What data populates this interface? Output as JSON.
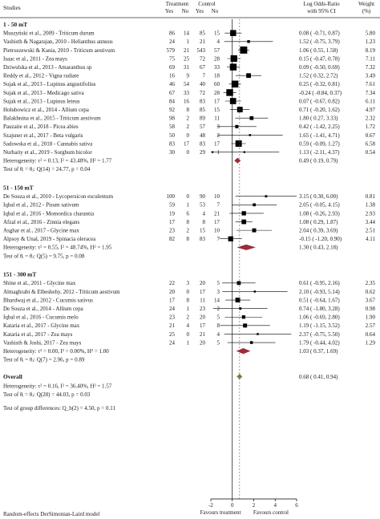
{
  "chart_data": {
    "type": "forest",
    "header": {
      "studies": "Studies",
      "treatment": "Treatment",
      "control": "Control",
      "yes": "Yes",
      "no": "No",
      "estimate_line1": "Log Odds-Ratio",
      "estimate_line2": "with 95% CI",
      "weight_line1": "Weight",
      "weight_line2": "(%)"
    },
    "xlim": [
      -2,
      6
    ],
    "xticks": [
      "-2",
      "0",
      "2",
      "4",
      "6"
    ],
    "x_left_label": "Favours treatment",
    "x_right_label": "Favours control",
    "footer": "Random-effects DerSimonian-Laird model",
    "group_difference_test": "Test of group differences: Q_b(2) = 4.50, p = 0.11",
    "groups": [
      {
        "title": "1 - 50 mT",
        "studies": [
          {
            "name": "Muszyński et al., 2009 - Triticum durum",
            "t_yes": "86",
            "t_no": "14",
            "c_yes": "85",
            "c_no": "15",
            "estimate": 0.08,
            "lower": -0.71,
            "upper": 0.87,
            "est_text": "0.08 (  -0.71,  0.87)",
            "weight": "5.80"
          },
          {
            "name": "Vashisth & Nagarajan, 2010 - Helianthus annuus",
            "t_yes": "24",
            "t_no": "1",
            "c_yes": "21",
            "c_no": "4",
            "estimate": 1.52,
            "lower": -0.75,
            "upper": 3.79,
            "est_text": "1.52 (  -0.75,  3.79)",
            "weight": "1.23"
          },
          {
            "name": "Pietruszewski & Kania, 2010 - Triticum aestivum",
            "t_yes": "579",
            "t_no": "21",
            "c_yes": "543",
            "c_no": "57",
            "estimate": 1.06,
            "lower": 0.55,
            "upper": 1.58,
            "est_text": "1.06 (   0.55,  1.58)",
            "weight": "8.19"
          },
          {
            "name": "Isaac et al., 2011 - Zea mays",
            "t_yes": "75",
            "t_no": "25",
            "c_yes": "72",
            "c_no": "28",
            "estimate": 0.15,
            "lower": -0.47,
            "upper": 0.78,
            "est_text": "0.15 (  -0.47,  0.78)",
            "weight": "7.11"
          },
          {
            "name": "Dziwulska et al., 2013 - Amaranthus sp",
            "t_yes": "69",
            "t_no": "31",
            "c_yes": "67",
            "c_no": "33",
            "estimate": 0.09,
            "lower": -0.5,
            "upper": 0.69,
            "est_text": "0.09 (  -0.50,  0.69)",
            "weight": "7.32"
          },
          {
            "name": "Reddy et al., 2012 - Vigna radiate",
            "t_yes": "16",
            "t_no": "9",
            "c_yes": "7",
            "c_no": "18",
            "estimate": 1.52,
            "lower": 0.32,
            "upper": 2.72,
            "est_text": "1.52 (   0.32,  2.72)",
            "weight": "3.49"
          },
          {
            "name": "Sujak et al., 2013 - Lupinus angustifolius",
            "t_yes": "46",
            "t_no": "54",
            "c_yes": "40",
            "c_no": "60",
            "estimate": 0.25,
            "lower": -0.32,
            "upper": 0.81,
            "est_text": "0.25 (  -0.32,  0.81)",
            "weight": "7.61"
          },
          {
            "name": "Sujak et al., 2013 - Medicago sativa",
            "t_yes": "67",
            "t_no": "33",
            "c_yes": "72",
            "c_no": "28",
            "estimate": -0.24,
            "lower": -0.84,
            "upper": 0.37,
            "est_text": "-0.24 (  -0.84,  0.37)",
            "weight": "7.34"
          },
          {
            "name": "Sujak et al., 2013 - Lupinus leteus",
            "t_yes": "84",
            "t_no": "16",
            "c_yes": "83",
            "c_no": "17",
            "estimate": 0.07,
            "lower": -0.67,
            "upper": 0.82,
            "est_text": "0.07 (  -0.67,  0.82)",
            "weight": "6.11"
          },
          {
            "name": "Hołubowicz et al., 2014 - Allium cepa",
            "t_yes": "92",
            "t_no": "8",
            "c_yes": "85",
            "c_no": "15",
            "estimate": 0.71,
            "lower": -0.2,
            "upper": 1.62,
            "est_text": "0.71 (  -0.20,  1.62)",
            "weight": "4.97"
          },
          {
            "name": "Balakhnina et al., 2015 - Triticum aestivum",
            "t_yes": "98",
            "t_no": "2",
            "c_yes": "89",
            "c_no": "11",
            "estimate": 1.8,
            "lower": 0.27,
            "upper": 3.33,
            "est_text": "1.80 (   0.27,  3.33)",
            "weight": "2.32"
          },
          {
            "name": "Pauzaite et al., 2018 - Picea abies",
            "t_yes": "58",
            "t_no": "2",
            "c_yes": "57",
            "c_no": "3",
            "estimate": 0.42,
            "lower": -1.42,
            "upper": 2.25,
            "est_text": "0.42 (  -1.42,  2.25)",
            "weight": "1.72"
          },
          {
            "name": "Szajsner et al., 2017 - Beta vulgaris",
            "t_yes": "50",
            "t_no": "0",
            "c_yes": "48",
            "c_no": "2",
            "estimate": 1.65,
            "lower": -1.41,
            "upper": 4.71,
            "est_text": "1.65 (  -1.41,  4.71)",
            "weight": "0.67"
          },
          {
            "name": "Sadowska et al., 2018 - Cannabis sativa",
            "t_yes": "83",
            "t_no": "17",
            "c_yes": "83",
            "c_no": "17",
            "estimate": 0.59,
            "lower": -0.09,
            "upper": 1.27,
            "est_text": "0.59 (  -0.09,  1.27)",
            "weight": "6.58"
          },
          {
            "name": "Nurbaity et al., 2019 - Sorghum bicolor",
            "t_yes": "30",
            "t_no": "0",
            "c_yes": "29",
            "c_no": "1",
            "estimate": 1.13,
            "lower": -2.11,
            "upper": 4.37,
            "est_text": "1.13 (  -2.11,  4.37)",
            "weight": "0.54"
          }
        ],
        "heterogeneity": "Heterogeneity: τ² = 0.13, I² = 43.48%, H² = 1.77",
        "test": "Test of θᵢ = θⱼ: Q(14) = 24.77, p = 0.04",
        "pooled": {
          "estimate": 0.49,
          "lower": 0.19,
          "upper": 0.79,
          "est_text": "0.49 (   0.19,  0.79)"
        }
      },
      {
        "title": "51 - 150 mT",
        "studies": [
          {
            "name": "De Souza et al., 2010 - Lycopersicon esculentum",
            "t_yes": "100",
            "t_no": "0",
            "c_yes": "90",
            "c_no": "10",
            "estimate": 3.15,
            "lower": 0.3,
            "upper": 6.0,
            "est_text": "3.15 (   0.30,  6.00)",
            "weight": "0.81"
          },
          {
            "name": "Iqbal et al., 2012 - Pisum sativum",
            "t_yes": "59",
            "t_no": "1",
            "c_yes": "53",
            "c_no": "7",
            "estimate": 2.05,
            "lower": -0.05,
            "upper": 4.15,
            "est_text": "2.05 (  -0.05,  4.15)",
            "weight": "1.38"
          },
          {
            "name": "Iqbal et al., 2016 - Momordica charantia",
            "t_yes": "19",
            "t_no": "6",
            "c_yes": "4",
            "c_no": "21",
            "estimate": 1.08,
            "lower": -0.26,
            "upper": 2.93,
            "est_text": "1.08 (  -0.26,  2.93)",
            "weight": "2.93"
          },
          {
            "name": "Afzal et al., 2016 - Zinnia elegans",
            "t_yes": "17",
            "t_no": "8",
            "c_yes": "8",
            "c_no": "17",
            "estimate": 1.08,
            "lower": 0.29,
            "upper": 1.87,
            "est_text": "1.08 (   0.29,  1.87)",
            "weight": "3.44"
          },
          {
            "name": "Asghar et al., 2017 - Glycine max",
            "t_yes": "23",
            "t_no": "2",
            "c_yes": "15",
            "c_no": "10",
            "estimate": 2.04,
            "lower": 0.39,
            "upper": 3.69,
            "est_text": "2.04 (   0.39,  3.69)",
            "weight": "2.51"
          },
          {
            "name": "Alpsoy & Unal, 2019 - Spinacia oleracea",
            "t_yes": "82",
            "t_no": "8",
            "c_yes": "83",
            "c_no": "7",
            "estimate": -0.15,
            "lower": -1.2,
            "upper": 0.9,
            "est_text": "-0.15 (  -1.20,  0.90)",
            "weight": "4.11"
          }
        ],
        "heterogeneity": "Heterogeneity: τ² = 0.55, I² = 48.74%, H² = 1.95",
        "test": "Test of θᵢ = θⱼ: Q(5) = 9.75, p = 0.08",
        "pooled": {
          "estimate": 1.3,
          "lower": 0.43,
          "upper": 2.18,
          "est_text": "1.30 (   0.43,  2.18)"
        }
      },
      {
        "title": "151 - 300 mT",
        "studies": [
          {
            "name": "Shine et al., 2011 - Glycine max",
            "t_yes": "22",
            "t_no": "3",
            "c_yes": "20",
            "c_no": "5",
            "estimate": 0.61,
            "lower": -0.95,
            "upper": 2.16,
            "est_text": "0.61 (  -0.95,  2.16)",
            "weight": "2.35"
          },
          {
            "name": "Almaghrabi & Elbeshehy, 2012 - Triticum aestivum",
            "t_yes": "20",
            "t_no": "0",
            "c_yes": "17",
            "c_no": "3",
            "estimate": 2.1,
            "lower": -0.93,
            "upper": 5.14,
            "estimate_text": "",
            "est_text": "2.10 (  -0.93,  5.14)",
            "weight": "0.62"
          },
          {
            "name": "Bhardwaj et al., 2012 - Cucumis sativus",
            "t_yes": "17",
            "t_no": "8",
            "c_yes": "11",
            "c_no": "14",
            "estimate": 0.51,
            "lower": -0.64,
            "upper": 1.67,
            "est_text": "0.51 (  -0.64,  1.67)",
            "weight": "3.67"
          },
          {
            "name": "De Souza et al., 2014 - Allium cepa",
            "t_yes": "24",
            "t_no": "1",
            "c_yes": "23",
            "c_no": "2",
            "estimate": 0.74,
            "lower": -1.8,
            "upper": 3.28,
            "est_text": "0.74 (  -1.80,  3.28)",
            "weight": "0.98"
          },
          {
            "name": "Iqbal et al., 2016 - Cucumis melo",
            "t_yes": "23",
            "t_no": "2",
            "c_yes": "20",
            "c_no": "5",
            "estimate": 1.06,
            "lower": -0.69,
            "upper": 2.8,
            "est_text": "1.06 (  -0.69,  2.80)",
            "weight": "1.90"
          },
          {
            "name": "Kataria et al., 2017 - Glycine max",
            "t_yes": "21",
            "t_no": "4",
            "c_yes": "17",
            "c_no": "8",
            "estimate": 1.19,
            "lower": -1.15,
            "upper": 3.52,
            "est_text": "1.19 (  -1.15,  3.52)",
            "weight": "2.57"
          },
          {
            "name": "Kataria et al., 2017 - Zea mays",
            "t_yes": "25",
            "t_no": "0",
            "c_yes": "21",
            "c_no": "4",
            "estimate": 2.37,
            "lower": -0.75,
            "upper": 5.5,
            "est_text": "2.37 (  -0.75,  5.50)",
            "weight": "0.64"
          },
          {
            "name": "Vashisth & Joshi, 2017 - Zea mays",
            "t_yes": "24",
            "t_no": "1",
            "c_yes": "20",
            "c_no": "5",
            "estimate": 1.79,
            "lower": -0.44,
            "upper": 4.02,
            "est_text": "1.79 (  -0.44,  4.02)",
            "weight": "1.29"
          }
        ],
        "heterogeneity": "Heterogeneity: τ² = 0.00, I² = 0.00%, H² = 1.00",
        "test": "Test of θᵢ = θⱼ: Q(7) = 2.96, p = 0.89",
        "pooled": {
          "estimate": 1.03,
          "lower": 0.37,
          "upper": 1.69,
          "est_text": "1.03 (   0.37,  1.69)"
        }
      }
    ],
    "overall": {
      "title": "Overall",
      "heterogeneity": "Heterogeneity: τ² = 0.16, I² = 36.40%, H² = 1.57",
      "test": "Test of θᵢ = θⱼ: Q(28) = 44.03, p = 0.03",
      "estimate": 0.68,
      "lower": 0.41,
      "upper": 0.94,
      "est_text": "0.68 (   0.41,  0.94)"
    },
    "colors": {
      "group_diamond": "#9b2d3a",
      "overall_diamond": "#6b8e3a",
      "marker": "#000000"
    }
  }
}
